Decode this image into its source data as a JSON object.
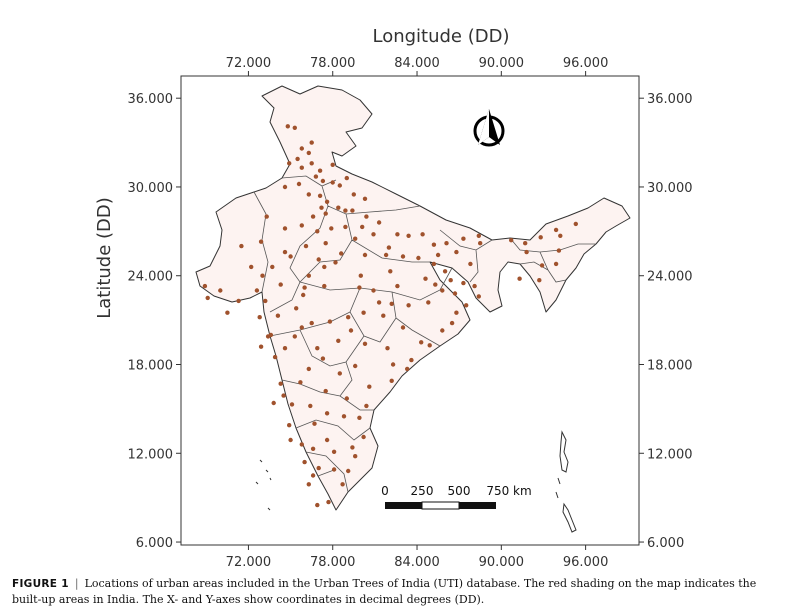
{
  "figure": {
    "x_axis_title": "Longitude (DD)",
    "y_axis_title": "Latitude (DD)",
    "x_ticks": [
      "72.000",
      "78.000",
      "84.000",
      "90.000",
      "96.000"
    ],
    "y_ticks": [
      "36.000",
      "30.000",
      "24.000",
      "18.000",
      "12.000",
      "6.000"
    ],
    "x_tick_values": [
      72,
      78,
      84,
      90,
      96
    ],
    "y_tick_values": [
      36,
      30,
      24,
      18,
      12,
      6
    ],
    "x_range": [
      67.2,
      99.8
    ],
    "y_range": [
      5.8,
      37.5
    ],
    "scale_bar": {
      "labels": [
        "0",
        "250",
        "500",
        "750 km"
      ]
    },
    "north_arrow": "north-arrow-icon",
    "colors": {
      "built_up": "#f2c7c0",
      "points": "#a0522d",
      "border": "#333333"
    }
  },
  "caption": {
    "label": "FIGURE 1",
    "separator": "|",
    "text": "Locations of urban areas included in the Urban Trees of India (UTI) database. The red shading on the map indicates the built-up areas in India. The X- and Y-axes show coordinates in decimal degrees (DD)."
  },
  "points": [
    [
      74.8,
      34.1
    ],
    [
      75.3,
      34.0
    ],
    [
      75.8,
      32.6
    ],
    [
      76.3,
      32.3
    ],
    [
      75.5,
      31.9
    ],
    [
      76.5,
      31.6
    ],
    [
      77.1,
      31.1
    ],
    [
      75.8,
      31.3
    ],
    [
      74.9,
      31.6
    ],
    [
      76.8,
      30.7
    ],
    [
      77.3,
      30.4
    ],
    [
      78.0,
      30.3
    ],
    [
      78.5,
      30.1
    ],
    [
      79.5,
      29.5
    ],
    [
      80.3,
      29.2
    ],
    [
      77.1,
      29.4
    ],
    [
      77.6,
      29.0
    ],
    [
      76.3,
      29.5
    ],
    [
      75.6,
      30.2
    ],
    [
      74.6,
      30.0
    ],
    [
      77.2,
      28.6
    ],
    [
      77.5,
      28.2
    ],
    [
      78.4,
      28.6
    ],
    [
      78.9,
      28.4
    ],
    [
      79.4,
      28.4
    ],
    [
      80.4,
      28.0
    ],
    [
      81.3,
      27.6
    ],
    [
      76.6,
      28.0
    ],
    [
      75.8,
      27.4
    ],
    [
      74.6,
      27.2
    ],
    [
      73.3,
      28.0
    ],
    [
      71.5,
      26.0
    ],
    [
      72.9,
      26.3
    ],
    [
      73.7,
      24.6
    ],
    [
      75.0,
      25.3
    ],
    [
      76.1,
      26.0
    ],
    [
      77.9,
      27.2
    ],
    [
      79.6,
      26.5
    ],
    [
      80.9,
      26.8
    ],
    [
      82.6,
      26.8
    ],
    [
      83.4,
      26.7
    ],
    [
      84.4,
      26.8
    ],
    [
      85.2,
      26.1
    ],
    [
      86.1,
      26.2
    ],
    [
      87.3,
      26.5
    ],
    [
      88.4,
      26.7
    ],
    [
      88.5,
      26.2
    ],
    [
      86.8,
      25.6
    ],
    [
      85.5,
      25.4
    ],
    [
      84.1,
      25.2
    ],
    [
      83.0,
      25.3
    ],
    [
      81.8,
      25.4
    ],
    [
      80.3,
      25.4
    ],
    [
      78.6,
      25.5
    ],
    [
      77.4,
      24.6
    ],
    [
      76.3,
      24.0
    ],
    [
      75.9,
      22.7
    ],
    [
      74.3,
      23.4
    ],
    [
      73.2,
      22.3
    ],
    [
      72.6,
      23.0
    ],
    [
      71.3,
      22.3
    ],
    [
      70.0,
      23.0
    ],
    [
      69.1,
      22.5
    ],
    [
      70.5,
      21.5
    ],
    [
      72.8,
      21.2
    ],
    [
      73.6,
      20.0
    ],
    [
      72.9,
      19.2
    ],
    [
      73.9,
      18.5
    ],
    [
      74.6,
      19.1
    ],
    [
      75.3,
      19.9
    ],
    [
      76.5,
      20.8
    ],
    [
      77.8,
      20.9
    ],
    [
      79.1,
      21.2
    ],
    [
      80.2,
      21.5
    ],
    [
      81.6,
      21.3
    ],
    [
      82.2,
      22.1
    ],
    [
      83.4,
      22.0
    ],
    [
      84.8,
      22.2
    ],
    [
      85.3,
      23.4
    ],
    [
      86.4,
      23.7
    ],
    [
      87.3,
      23.5
    ],
    [
      88.4,
      22.6
    ],
    [
      88.1,
      23.3
    ],
    [
      87.8,
      24.8
    ],
    [
      86.8,
      21.5
    ],
    [
      85.8,
      20.3
    ],
    [
      84.3,
      19.5
    ],
    [
      83.3,
      17.7
    ],
    [
      82.2,
      16.9
    ],
    [
      80.6,
      16.5
    ],
    [
      79.6,
      17.9
    ],
    [
      78.5,
      17.4
    ],
    [
      77.3,
      18.4
    ],
    [
      76.3,
      17.7
    ],
    [
      75.7,
      16.8
    ],
    [
      74.3,
      16.7
    ],
    [
      74.5,
      15.9
    ],
    [
      73.8,
      15.4
    ],
    [
      75.1,
      15.3
    ],
    [
      76.4,
      15.2
    ],
    [
      77.6,
      14.7
    ],
    [
      78.8,
      14.5
    ],
    [
      79.9,
      14.4
    ],
    [
      80.2,
      13.1
    ],
    [
      79.4,
      12.4
    ],
    [
      78.1,
      12.1
    ],
    [
      77.6,
      12.9
    ],
    [
      76.6,
      12.3
    ],
    [
      75.8,
      12.6
    ],
    [
      75.0,
      12.9
    ],
    [
      76.0,
      11.4
    ],
    [
      77.0,
      11.0
    ],
    [
      78.1,
      10.9
    ],
    [
      79.1,
      10.8
    ],
    [
      78.7,
      9.9
    ],
    [
      77.7,
      8.7
    ],
    [
      76.9,
      8.5
    ],
    [
      76.3,
      9.9
    ],
    [
      76.6,
      10.5
    ],
    [
      79.6,
      11.8
    ],
    [
      91.7,
      26.2
    ],
    [
      92.8,
      26.6
    ],
    [
      94.2,
      26.7
    ],
    [
      95.3,
      27.5
    ],
    [
      93.9,
      27.1
    ],
    [
      90.7,
      26.4
    ],
    [
      93.9,
      24.8
    ],
    [
      91.3,
      23.8
    ],
    [
      92.7,
      23.7
    ],
    [
      94.1,
      25.7
    ],
    [
      92.9,
      24.7
    ],
    [
      91.8,
      25.6
    ],
    [
      72.2,
      24.6
    ],
    [
      68.9,
      23.3
    ],
    [
      78.2,
      24.9
    ],
    [
      80.0,
      24.0
    ],
    [
      82.1,
      24.3
    ],
    [
      79.9,
      23.2
    ],
    [
      77.4,
      23.3
    ],
    [
      81.3,
      22.2
    ],
    [
      83.0,
      20.5
    ],
    [
      80.3,
      19.4
    ],
    [
      81.9,
      19.1
    ],
    [
      84.9,
      19.3
    ],
    [
      86.5,
      20.8
    ],
    [
      87.5,
      22.0
    ],
    [
      76.7,
      14.0
    ],
    [
      74.9,
      13.9
    ],
    [
      77.5,
      16.2
    ],
    [
      79.0,
      15.7
    ],
    [
      80.4,
      15.2
    ],
    [
      78.4,
      19.6
    ],
    [
      79.3,
      20.3
    ],
    [
      75.8,
      20.5
    ],
    [
      74.1,
      21.3
    ],
    [
      76.0,
      23.2
    ],
    [
      73.0,
      24.0
    ],
    [
      74.6,
      25.6
    ],
    [
      77.0,
      25.1
    ],
    [
      80.9,
      23.0
    ],
    [
      82.6,
      23.3
    ],
    [
      84.6,
      23.8
    ],
    [
      86.0,
      24.3
    ],
    [
      85.2,
      24.8
    ],
    [
      82.0,
      25.9
    ],
    [
      80.1,
      27.3
    ],
    [
      78.9,
      27.3
    ],
    [
      76.9,
      27.0
    ],
    [
      77.5,
      26.2
    ],
    [
      79.0,
      30.6
    ],
    [
      78.0,
      31.5
    ],
    [
      76.5,
      33.0
    ],
    [
      86.7,
      22.8
    ],
    [
      85.8,
      23.0
    ],
    [
      75.4,
      21.8
    ],
    [
      73.4,
      19.9
    ],
    [
      76.9,
      19.1
    ],
    [
      82.3,
      18.0
    ],
    [
      83.6,
      18.3
    ]
  ]
}
